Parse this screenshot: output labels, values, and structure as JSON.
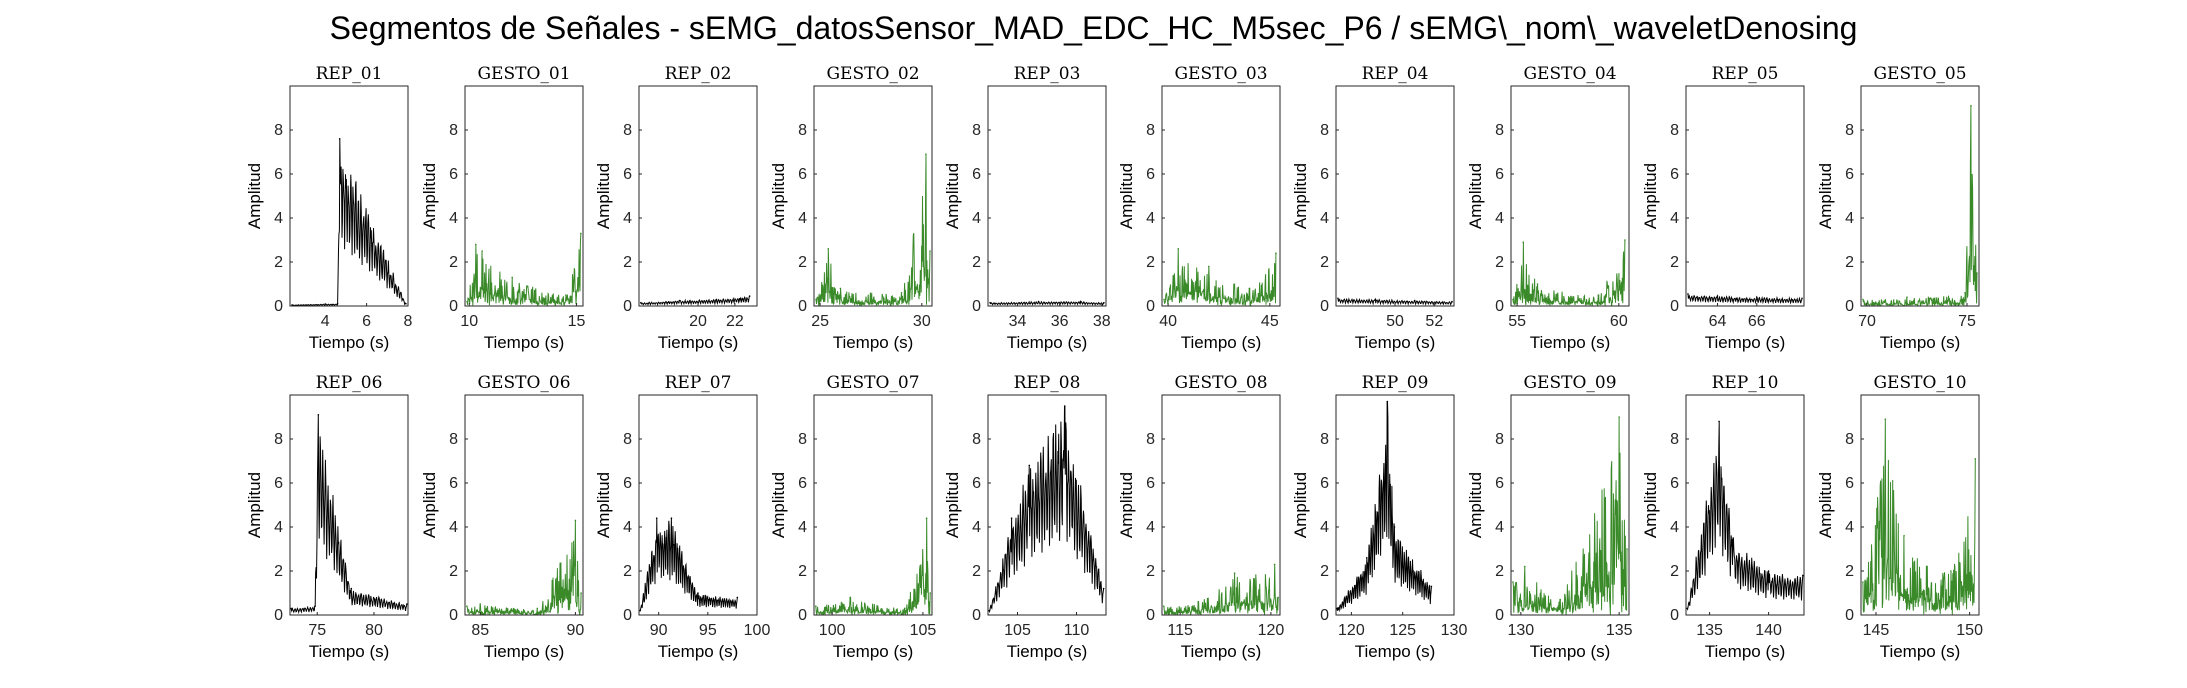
{
  "figure": {
    "title": "Segmentos de Señales - sEMG_datosSensor_MAD_EDC_HC_M5sec_P6 / sEMG\\_nom\\_waveletDenosing",
    "colors": {
      "rep": "#000000",
      "gesto": "#3a8a2a",
      "axis": "#262626"
    }
  },
  "chart_data": [
    {
      "type": "line",
      "title": "REP_01",
      "xlabel": "Tiempo (s)",
      "ylabel": "Amplitud",
      "xlim": [
        2.3,
        8
      ],
      "ylim": [
        0,
        10
      ],
      "xticks": [
        4,
        6,
        8
      ],
      "yticks": [
        0,
        2,
        4,
        6,
        8
      ],
      "series": [
        {
          "color": "#000000",
          "profile": "rep",
          "x": [
            2.4,
            4.6,
            4.7,
            7.9
          ],
          "y": [
            0.05,
            0.1,
            7.6,
            0.1
          ]
        }
      ]
    },
    {
      "type": "line",
      "title": "GESTO_01",
      "xlabel": "Tiempo (s)",
      "ylabel": "Amplitud",
      "xlim": [
        9.8,
        15.3
      ],
      "ylim": [
        0,
        10
      ],
      "xticks": [
        10,
        15
      ],
      "yticks": [
        0,
        2,
        4,
        6,
        8
      ],
      "series": [
        {
          "color": "#3a8a2a",
          "profile": "gesto",
          "x": [
            9.9,
            10.3,
            10.6,
            12,
            14.5,
            15.2
          ],
          "y": [
            0.2,
            2.8,
            2.5,
            1.3,
            0.5,
            3.3
          ]
        }
      ]
    },
    {
      "type": "line",
      "title": "REP_02",
      "xlabel": "Tiempo (s)",
      "ylabel": "Amplitud",
      "xlim": [
        16.8,
        23.2
      ],
      "ylim": [
        0,
        10
      ],
      "xticks": [
        20,
        22
      ],
      "yticks": [
        0,
        2,
        4,
        6,
        8
      ],
      "series": [
        {
          "color": "#000000",
          "profile": "rep",
          "x": [
            16.9,
            19,
            21,
            22.8
          ],
          "y": [
            0.15,
            0.25,
            0.3,
            0.45
          ]
        }
      ]
    },
    {
      "type": "line",
      "title": "GESTO_02",
      "xlabel": "Tiempo (s)",
      "ylabel": "Amplitud",
      "xlim": [
        24.7,
        30.5
      ],
      "ylim": [
        0,
        10
      ],
      "xticks": [
        25,
        30
      ],
      "yticks": [
        0,
        2,
        4,
        6,
        8
      ],
      "series": [
        {
          "color": "#3a8a2a",
          "profile": "gesto",
          "x": [
            24.8,
            25.4,
            26,
            29,
            30.2,
            30.4
          ],
          "y": [
            0.3,
            2.6,
            0.8,
            0.6,
            6.9,
            2.5
          ]
        }
      ]
    },
    {
      "type": "line",
      "title": "REP_03",
      "xlabel": "Tiempo (s)",
      "ylabel": "Amplitud",
      "xlim": [
        32.6,
        38.2
      ],
      "ylim": [
        0,
        10
      ],
      "xticks": [
        34,
        36,
        38
      ],
      "yticks": [
        0,
        2,
        4,
        6,
        8
      ],
      "series": [
        {
          "color": "#000000",
          "profile": "rep",
          "x": [
            32.7,
            35,
            37,
            38.1
          ],
          "y": [
            0.15,
            0.2,
            0.2,
            0.15
          ]
        }
      ]
    },
    {
      "type": "line",
      "title": "GESTO_03",
      "xlabel": "Tiempo (s)",
      "ylabel": "Amplitud",
      "xlim": [
        39.7,
        45.5
      ],
      "ylim": [
        0,
        10
      ],
      "xticks": [
        40,
        45
      ],
      "yticks": [
        0,
        2,
        4,
        6,
        8
      ],
      "series": [
        {
          "color": "#3a8a2a",
          "profile": "gesto",
          "x": [
            39.8,
            40.5,
            42,
            44,
            45.3
          ],
          "y": [
            0.3,
            2.6,
            1.8,
            0.8,
            2.4
          ]
        }
      ]
    },
    {
      "type": "line",
      "title": "REP_04",
      "xlabel": "Tiempo (s)",
      "ylabel": "Amplitud",
      "xlim": [
        47,
        53
      ],
      "ylim": [
        0,
        10
      ],
      "xticks": [
        50,
        52
      ],
      "yticks": [
        0,
        2,
        4,
        6,
        8
      ],
      "series": [
        {
          "color": "#000000",
          "profile": "rep",
          "x": [
            47.1,
            49,
            51,
            52.9
          ],
          "y": [
            0.35,
            0.3,
            0.25,
            0.2
          ]
        }
      ]
    },
    {
      "type": "line",
      "title": "GESTO_04",
      "xlabel": "Tiempo (s)",
      "ylabel": "Amplitud",
      "xlim": [
        54.7,
        60.5
      ],
      "ylim": [
        0,
        10
      ],
      "xticks": [
        55,
        60
      ],
      "yticks": [
        0,
        2,
        4,
        6,
        8
      ],
      "series": [
        {
          "color": "#3a8a2a",
          "profile": "gesto",
          "x": [
            54.8,
            55.3,
            56,
            59,
            60.3
          ],
          "y": [
            0.3,
            2.9,
            1.0,
            0.5,
            3.0
          ]
        }
      ]
    },
    {
      "type": "line",
      "title": "REP_05",
      "xlabel": "Tiempo (s)",
      "ylabel": "Amplitud",
      "xlim": [
        62.4,
        68.4
      ],
      "ylim": [
        0,
        10
      ],
      "xticks": [
        64,
        66
      ],
      "yticks": [
        0,
        2,
        4,
        6,
        8
      ],
      "series": [
        {
          "color": "#000000",
          "profile": "rep",
          "x": [
            62.5,
            64,
            66,
            68.3
          ],
          "y": [
            0.55,
            0.45,
            0.4,
            0.35
          ]
        }
      ]
    },
    {
      "type": "line",
      "title": "GESTO_05",
      "xlabel": "Tiempo (s)",
      "ylabel": "Amplitud",
      "xlim": [
        69.7,
        75.6
      ],
      "ylim": [
        0,
        10
      ],
      "xticks": [
        70,
        75
      ],
      "yticks": [
        0,
        2,
        4,
        6,
        8
      ],
      "series": [
        {
          "color": "#3a8a2a",
          "profile": "gesto",
          "x": [
            69.8,
            72,
            74.9,
            75.2,
            75.5
          ],
          "y": [
            0.3,
            0.4,
            0.6,
            9.1,
            1.5
          ]
        }
      ]
    },
    {
      "type": "line",
      "title": "REP_06",
      "xlabel": "Tiempo (s)",
      "ylabel": "Amplitud",
      "xlim": [
        72.6,
        83
      ],
      "ylim": [
        0,
        10
      ],
      "xticks": [
        75,
        80
      ],
      "yticks": [
        0,
        2,
        4,
        6,
        8
      ],
      "series": [
        {
          "color": "#000000",
          "profile": "rep",
          "x": [
            72.7,
            74.8,
            75.1,
            78,
            82.9
          ],
          "y": [
            0.3,
            0.4,
            9.1,
            1.2,
            0.5
          ]
        }
      ]
    },
    {
      "type": "line",
      "title": "GESTO_06",
      "xlabel": "Tiempo (s)",
      "ylabel": "Amplitud",
      "xlim": [
        84.2,
        90.4
      ],
      "ylim": [
        0,
        10
      ],
      "xticks": [
        85,
        90
      ],
      "yticks": [
        0,
        2,
        4,
        6,
        8
      ],
      "series": [
        {
          "color": "#3a8a2a",
          "profile": "gesto",
          "x": [
            84.3,
            85,
            88,
            90,
            90.3
          ],
          "y": [
            0.4,
            0.5,
            0.3,
            4.3,
            1.0
          ]
        }
      ]
    },
    {
      "type": "line",
      "title": "REP_07",
      "xlabel": "Tiempo (s)",
      "ylabel": "Amplitud",
      "xlim": [
        88,
        100
      ],
      "ylim": [
        0,
        10
      ],
      "xticks": [
        90,
        95,
        100
      ],
      "yticks": [
        0,
        2,
        4,
        6,
        8
      ],
      "series": [
        {
          "color": "#000000",
          "profile": "rep",
          "x": [
            88.1,
            89.8,
            91.3,
            94,
            98
          ],
          "y": [
            0.2,
            4.4,
            4.4,
            1.0,
            0.8
          ]
        }
      ]
    },
    {
      "type": "line",
      "title": "GESTO_07",
      "xlabel": "Tiempo (s)",
      "ylabel": "Amplitud",
      "xlim": [
        99,
        105.5
      ],
      "ylim": [
        0,
        10
      ],
      "xticks": [
        100,
        105
      ],
      "yticks": [
        0,
        2,
        4,
        6,
        8
      ],
      "series": [
        {
          "color": "#3a8a2a",
          "profile": "gesto",
          "x": [
            99.1,
            101,
            104,
            105.2,
            105.4
          ],
          "y": [
            0.4,
            0.8,
            0.3,
            4.4,
            1.0
          ]
        }
      ]
    },
    {
      "type": "line",
      "title": "REP_08",
      "xlabel": "Tiempo (s)",
      "ylabel": "Amplitud",
      "xlim": [
        102.5,
        112.5
      ],
      "ylim": [
        0,
        10
      ],
      "xticks": [
        105,
        110
      ],
      "yticks": [
        0,
        2,
        4,
        6,
        8
      ],
      "series": [
        {
          "color": "#000000",
          "profile": "rep",
          "x": [
            102.6,
            104.5,
            106,
            109,
            112.3
          ],
          "y": [
            0.2,
            4.4,
            6.8,
            9.5,
            1.2
          ]
        }
      ]
    },
    {
      "type": "line",
      "title": "GESTO_08",
      "xlabel": "Tiempo (s)",
      "ylabel": "Amplitud",
      "xlim": [
        114,
        120.5
      ],
      "ylim": [
        0,
        10
      ],
      "xticks": [
        115,
        120
      ],
      "yticks": [
        0,
        2,
        4,
        6,
        8
      ],
      "series": [
        {
          "color": "#3a8a2a",
          "profile": "gesto",
          "x": [
            114.1,
            116,
            118,
            120.2,
            120.4
          ],
          "y": [
            0.4,
            0.6,
            1.9,
            2.3,
            0.8
          ]
        }
      ]
    },
    {
      "type": "line",
      "title": "REP_09",
      "xlabel": "Tiempo (s)",
      "ylabel": "Amplitud",
      "xlim": [
        118.5,
        130
      ],
      "ylim": [
        0,
        10
      ],
      "xticks": [
        120,
        125,
        130
      ],
      "yticks": [
        0,
        2,
        4,
        6,
        8
      ],
      "series": [
        {
          "color": "#000000",
          "profile": "rep",
          "x": [
            118.6,
            121.5,
            123.5,
            124.2,
            127.8
          ],
          "y": [
            0.3,
            2.6,
            9.7,
            4.0,
            1.3
          ]
        }
      ]
    },
    {
      "type": "line",
      "title": "GESTO_09",
      "xlabel": "Tiempo (s)",
      "ylabel": "Amplitud",
      "xlim": [
        129.5,
        135.5
      ],
      "ylim": [
        0,
        10
      ],
      "xticks": [
        130,
        135
      ],
      "yticks": [
        0,
        2,
        4,
        6,
        8
      ],
      "series": [
        {
          "color": "#3a8a2a",
          "profile": "gesto",
          "x": [
            129.6,
            130.2,
            132,
            135,
            135.4
          ],
          "y": [
            1.5,
            2.2,
            0.7,
            9.0,
            3.0
          ]
        }
      ]
    },
    {
      "type": "line",
      "title": "REP_10",
      "xlabel": "Tiempo (s)",
      "ylabel": "Amplitud",
      "xlim": [
        133,
        143
      ],
      "ylim": [
        0,
        10
      ],
      "xticks": [
        135,
        140
      ],
      "yticks": [
        0,
        2,
        4,
        6,
        8
      ],
      "series": [
        {
          "color": "#000000",
          "profile": "rep",
          "x": [
            133.1,
            135.8,
            137,
            140,
            142.9
          ],
          "y": [
            0.3,
            8.8,
            3.5,
            2.0,
            1.8
          ]
        }
      ]
    },
    {
      "type": "line",
      "title": "GESTO_10",
      "xlabel": "Tiempo (s)",
      "ylabel": "Amplitud",
      "xlim": [
        144.2,
        150.5
      ],
      "ylim": [
        0,
        10
      ],
      "xticks": [
        145,
        150
      ],
      "yticks": [
        0,
        2,
        4,
        6,
        8
      ],
      "series": [
        {
          "color": "#3a8a2a",
          "profile": "gesto",
          "x": [
            144.3,
            145.5,
            146.5,
            149,
            150.3
          ],
          "y": [
            1.5,
            8.9,
            3.6,
            2.0,
            7.1
          ]
        }
      ]
    }
  ]
}
